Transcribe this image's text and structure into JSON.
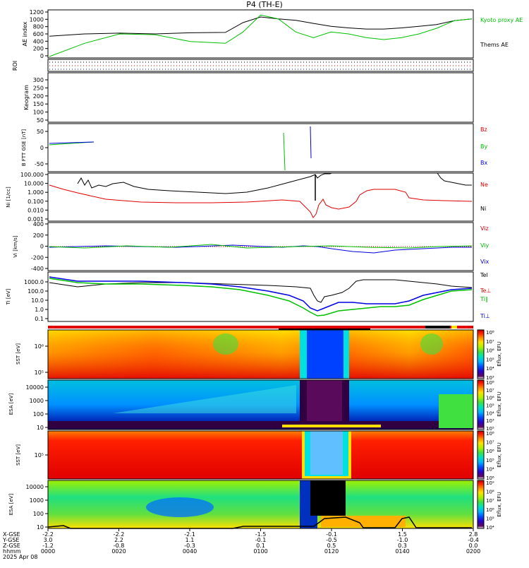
{
  "title": "P4 (TH-E)",
  "date_label": "2025 Apr 08",
  "footer_row_labels": [
    "X-GSE",
    "Y-GSE",
    "Z-GSE",
    "hhmm"
  ],
  "x_ticks": [
    {
      "x": "-2.2",
      "y": "3.0",
      "z": "-1.2",
      "hhmm": "0000"
    },
    {
      "x": "-2.2",
      "y": "2.2",
      "z": "-0.8",
      "hhmm": "0020"
    },
    {
      "x": "-2.1",
      "y": "1.1",
      "z": "-0.3",
      "hhmm": "0040"
    },
    {
      "x": "-1.5",
      "y": "-0.1",
      "z": "0.1",
      "hhmm": "0100"
    },
    {
      "x": "-0.1",
      "y": "-0.5",
      "z": "0.5",
      "hhmm": "0120"
    },
    {
      "x": "1.5",
      "y": "-1.0",
      "z": "0.3",
      "hhmm": "0140"
    },
    {
      "x": "2.8",
      "y": "-0.4",
      "z": "0.0",
      "hhmm": "0200"
    }
  ],
  "colorbar": {
    "label": "Eflux, EFU",
    "colors": [
      "#ffffff",
      "#5a0a5a",
      "#2a00c8",
      "#0050ff",
      "#00b4ff",
      "#00e0c0",
      "#40e040",
      "#b0f000",
      "#ffe000",
      "#ff8000",
      "#ff2000",
      "#c00000"
    ],
    "panel1_ticks": [
      "10⁸",
      "10⁷",
      "10⁶",
      "10⁵",
      "10⁴",
      "10³"
    ],
    "panel2_ticks": [
      "10⁸",
      "10⁷",
      "10⁶",
      "10⁵",
      "10⁴",
      "10³",
      "10⁵"
    ],
    "panel3_ticks": [
      "10⁸",
      "10⁷",
      "10⁶",
      "10⁵",
      "10⁴",
      "10⁶"
    ],
    "panel4_ticks": [
      "10⁹",
      "10⁸",
      "10⁷",
      "10⁶",
      "10⁵",
      "10⁴"
    ]
  },
  "chart_data": [
    {
      "type": "line",
      "ylabel": "AE index",
      "yticks": [
        "0",
        "200",
        "400",
        "600",
        "800",
        "1000",
        "1200"
      ],
      "ylim": [
        0,
        1200
      ],
      "x": [
        0,
        10,
        20,
        30,
        40,
        50,
        55,
        60,
        65,
        70,
        75,
        80,
        85,
        90,
        95,
        100,
        105,
        110,
        115,
        120
      ],
      "series": [
        {
          "name": "Thems AE",
          "color": "#000000",
          "values": [
            540,
            600,
            620,
            600,
            630,
            640,
            900,
            1050,
            1000,
            960,
            880,
            800,
            760,
            730,
            730,
            760,
            800,
            850,
            950,
            1000
          ]
        },
        {
          "name": "Kyoto proxy AE",
          "color": "#00c000",
          "values": [
            0,
            350,
            600,
            580,
            400,
            350,
            650,
            1100,
            1000,
            650,
            500,
            650,
            600,
            500,
            450,
            500,
            600,
            750,
            950,
            1000
          ]
        }
      ]
    },
    {
      "type": "line",
      "ylabel": "ROI",
      "note": "dotted flags"
    },
    {
      "type": "heatmap",
      "ylabel": "Keogram",
      "yticks": [
        "50",
        "100",
        "150",
        "200",
        "250",
        "300"
      ]
    },
    {
      "type": "line",
      "ylabel": "B FTT GSE [nT]",
      "yticks": [
        "-50",
        "0",
        "50"
      ],
      "series": [
        {
          "name": "Bz",
          "color": "#e00000"
        },
        {
          "name": "By",
          "color": "#00c000"
        },
        {
          "name": "Bx",
          "color": "#0000e0"
        }
      ]
    },
    {
      "type": "line",
      "ylabel": "Ni [1/cc]",
      "yscale": "log",
      "yticks": [
        "0.001",
        "0.010",
        "0.100",
        "1.000",
        "10.000",
        "100.000"
      ],
      "series": [
        {
          "name": "Ne",
          "color": "#e00000"
        },
        {
          "name": "Ni",
          "color": "#000000"
        }
      ]
    },
    {
      "type": "line",
      "ylabel": "Vi [km/s]",
      "yticks": [
        "-400",
        "-200",
        "0",
        "200",
        "400"
      ],
      "series": [
        {
          "name": "Viz",
          "color": "#e00000"
        },
        {
          "name": "Viy",
          "color": "#00c000"
        },
        {
          "name": "Vix",
          "color": "#0000e0"
        }
      ]
    },
    {
      "type": "line",
      "ylabel": "Ti [eV]",
      "yscale": "log",
      "yticks": [
        "0.1",
        "1.0",
        "10.0",
        "100.0",
        "1000.0"
      ],
      "series": [
        {
          "name": "Tel",
          "color": "#000000"
        },
        {
          "name": "Te⊥",
          "color": "#e00000"
        },
        {
          "name": "Ti∥",
          "color": "#00c000"
        },
        {
          "name": "Ti⊥",
          "color": "#0000e0"
        }
      ]
    },
    {
      "type": "heatmap",
      "ylabel": "SST [eV]",
      "yticks": [
        "10⁵",
        "10⁶"
      ]
    },
    {
      "type": "heatmap",
      "ylabel": "ESA [eV]",
      "yticks": [
        "10",
        "100",
        "1000",
        "10000"
      ]
    },
    {
      "type": "heatmap",
      "ylabel": "SST [eV]",
      "yticks": [
        "10⁵"
      ]
    },
    {
      "type": "heatmap",
      "ylabel": "ESA [eV]",
      "yticks": [
        "10",
        "100",
        "1000",
        "10000"
      ]
    }
  ]
}
